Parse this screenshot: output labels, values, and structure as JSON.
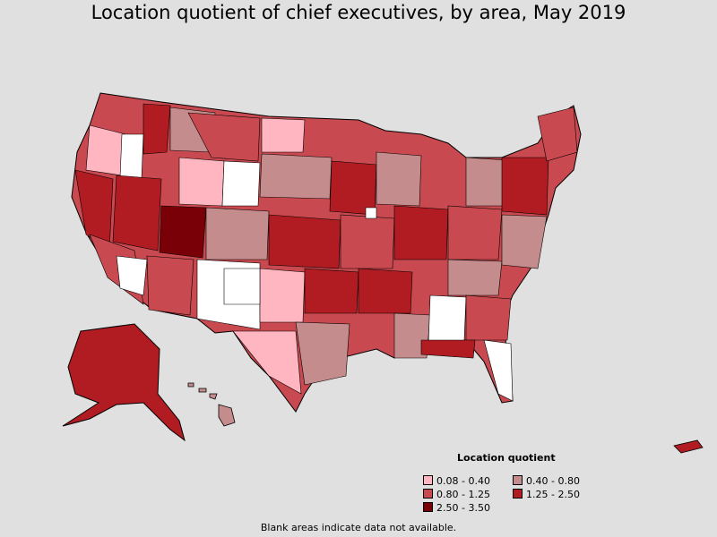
{
  "title": "Location quotient of chief executives, by area, May 2019",
  "legend": {
    "title": "Location quotient",
    "items": [
      {
        "label": "0.08 - 0.40",
        "color": "#ffb6c1"
      },
      {
        "label": "0.40 - 0.80",
        "color": "#c48c8c"
      },
      {
        "label": "0.80 - 1.25",
        "color": "#c8494f"
      },
      {
        "label": "1.25 - 2.50",
        "color": "#b01c22"
      },
      {
        "label": "2.50 - 3.50",
        "color": "#7a0008"
      }
    ]
  },
  "footnote": "Blank areas indicate data not available.",
  "map": {
    "regions": [
      "contiguous-us",
      "alaska",
      "hawaii",
      "puerto-rico"
    ]
  }
}
